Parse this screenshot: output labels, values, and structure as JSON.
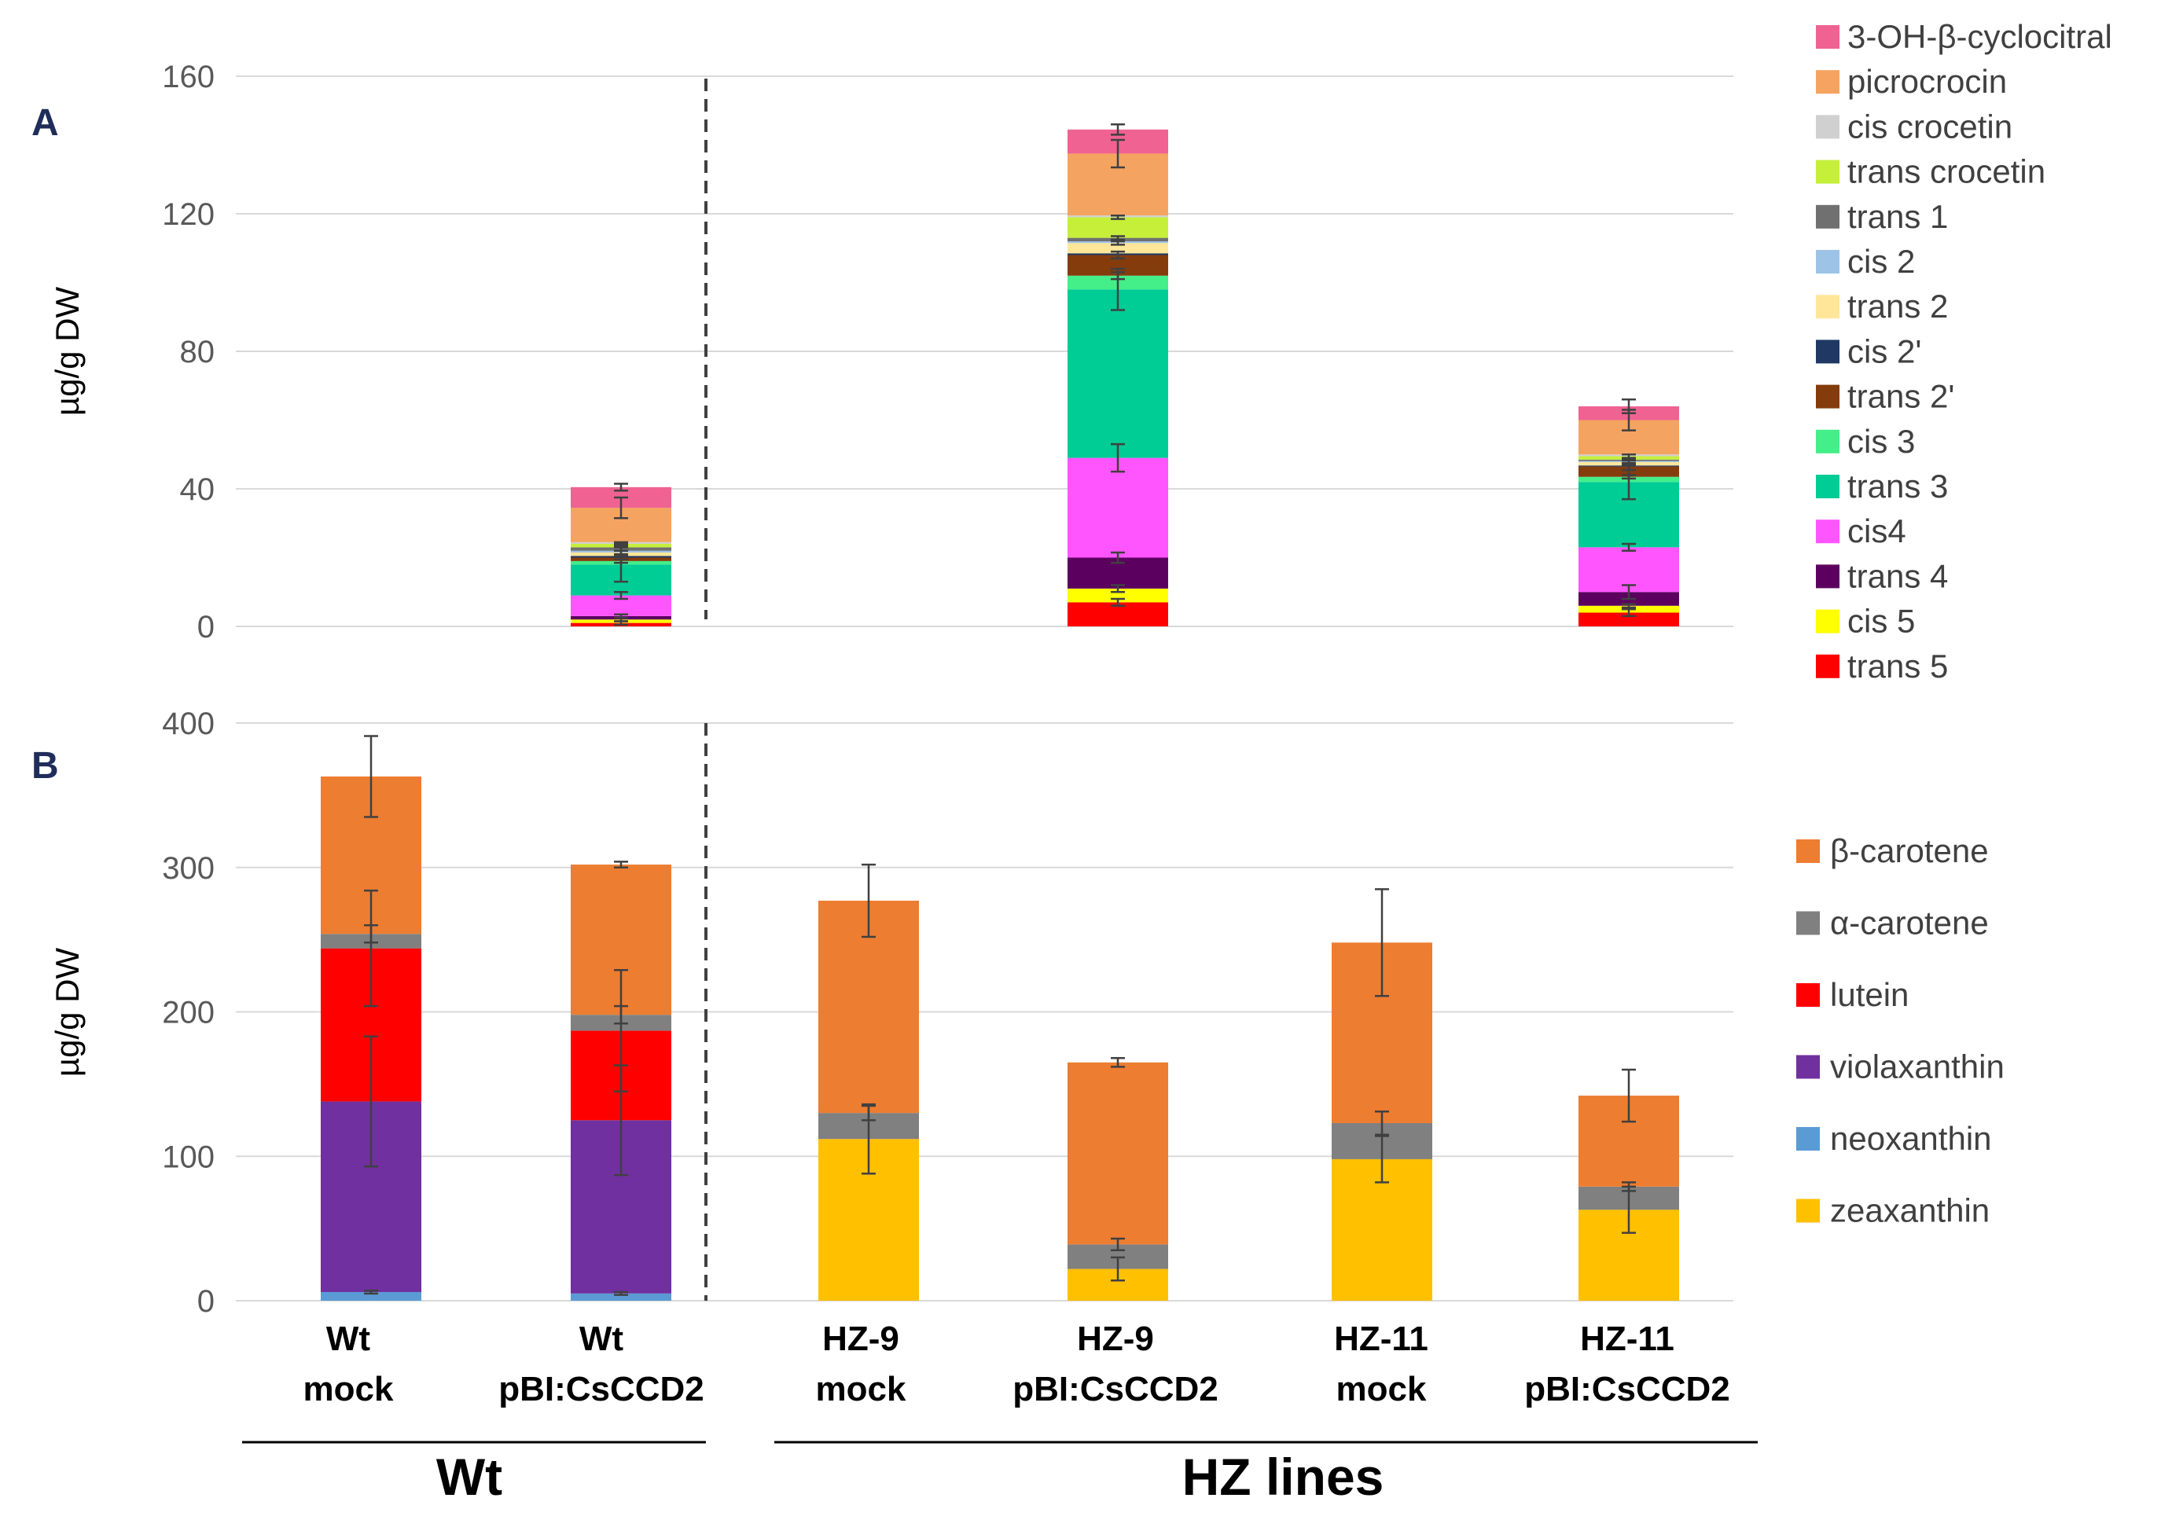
{
  "chart_data": [
    {
      "panel": "A",
      "type": "bar",
      "stacked": true,
      "ylabel": "µg/g DW",
      "ylim": [
        0,
        160
      ],
      "yticks": [
        0,
        40,
        80,
        120,
        160
      ],
      "grid": true,
      "legend_position": "right",
      "categories": [
        "Wt mock",
        "Wt pBI:CsCCD2",
        "HZ-9 mock",
        "HZ-9 pBI:CsCCD2",
        "HZ-11 mock",
        "HZ-11 pBI:CsCCD2"
      ],
      "series": [
        {
          "name": "trans 5",
          "color": "#ff0000",
          "values": [
            0,
            1,
            0,
            7,
            0,
            4
          ],
          "errors": [
            0,
            0.5,
            0,
            1,
            0,
            1
          ]
        },
        {
          "name": "cis 5",
          "color": "#ffff00",
          "values": [
            0,
            1,
            0,
            4,
            0,
            2
          ],
          "errors": [
            0,
            0.5,
            0,
            1,
            0,
            0.5
          ]
        },
        {
          "name": "trans 4",
          "color": "#5c0060",
          "values": [
            0,
            1,
            0,
            9,
            0,
            4
          ],
          "errors": [
            0,
            0.5,
            0,
            1.5,
            0,
            2
          ]
        },
        {
          "name": "cis4",
          "color": "#ff55ff",
          "values": [
            0,
            6,
            0,
            29,
            0,
            13
          ],
          "errors": [
            0,
            1,
            0,
            4,
            0,
            1
          ]
        },
        {
          "name": "trans 3",
          "color": "#00cc96",
          "values": [
            0,
            9,
            0,
            49,
            0,
            19
          ],
          "errors": [
            0,
            5,
            0,
            6,
            0,
            5
          ]
        },
        {
          "name": "cis 3",
          "color": "#44ee88",
          "values": [
            0,
            1,
            0,
            4,
            0,
            1.5
          ],
          "errors": [
            0,
            0.5,
            0,
            1,
            0,
            0.5
          ]
        },
        {
          "name": "trans 2'",
          "color": "#843c0c",
          "values": [
            0,
            1,
            0,
            6,
            0,
            3
          ],
          "errors": [
            0,
            0.5,
            0,
            1,
            0,
            1
          ]
        },
        {
          "name": "cis 2'",
          "color": "#1f3864",
          "values": [
            0,
            0.5,
            0,
            0.5,
            0,
            0.3
          ],
          "errors": [
            0,
            0,
            0,
            0,
            0,
            0
          ]
        },
        {
          "name": "trans 2",
          "color": "#ffe699",
          "values": [
            0,
            1,
            0,
            3,
            0,
            1
          ],
          "errors": [
            0,
            0.5,
            0,
            0.5,
            0,
            0.5
          ]
        },
        {
          "name": "cis 2",
          "color": "#9dc3e6",
          "values": [
            0,
            0.5,
            0,
            0.5,
            0,
            0.3
          ],
          "errors": [
            0,
            0,
            0,
            0,
            0,
            0
          ]
        },
        {
          "name": "trans 1",
          "color": "#707070",
          "values": [
            0,
            1,
            0,
            1,
            0,
            0.4
          ],
          "errors": [
            0,
            1,
            0,
            0.5,
            0,
            0.3
          ]
        },
        {
          "name": "trans crocetin",
          "color": "#c6ef3a",
          "values": [
            0,
            1,
            0,
            6,
            0,
            1
          ],
          "errors": [
            0,
            0.5,
            0,
            0.5,
            0,
            0.5
          ]
        },
        {
          "name": "cis crocetin",
          "color": "#d0d0d0",
          "values": [
            0,
            0.5,
            0,
            0.5,
            0,
            0.5
          ],
          "errors": [
            0,
            0,
            0,
            0,
            0,
            0
          ]
        },
        {
          "name": "picrocrocin",
          "color": "#f4a460",
          "values": [
            0,
            10,
            0,
            18,
            0,
            10
          ],
          "errors": [
            0,
            3,
            0,
            4,
            0,
            3
          ]
        },
        {
          "name": "3-OH-β-cyclocitral",
          "color": "#f06292",
          "values": [
            0,
            6,
            0,
            7,
            0,
            4
          ],
          "errors": [
            0,
            1,
            0,
            1.5,
            0,
            2
          ]
        }
      ]
    },
    {
      "panel": "B",
      "type": "bar",
      "stacked": true,
      "ylabel": "µg/g DW",
      "ylim": [
        0,
        400
      ],
      "yticks": [
        0,
        100,
        200,
        300,
        400
      ],
      "grid": true,
      "legend_position": "right",
      "categories": [
        "Wt mock",
        "Wt pBI:CsCCD2",
        "HZ-9 mock",
        "HZ-9 pBI:CsCCD2",
        "HZ-11 mock",
        "HZ-11 pBI:CsCCD2"
      ],
      "series": [
        {
          "name": "zeaxanthin",
          "color": "#ffc000",
          "values": [
            0,
            0,
            112,
            22,
            98,
            63
          ],
          "errors": [
            0,
            0,
            24,
            8,
            16,
            16
          ]
        },
        {
          "name": "neoxanthin",
          "color": "#5b9bd5",
          "values": [
            6,
            5,
            0,
            0,
            0,
            0
          ],
          "errors": [
            1,
            1,
            0,
            0,
            0,
            0
          ]
        },
        {
          "name": "violaxanthin",
          "color": "#7030a0",
          "values": [
            132,
            120,
            0,
            0,
            0,
            0
          ],
          "errors": [
            45,
            38,
            0,
            0,
            0,
            0
          ]
        },
        {
          "name": "lutein",
          "color": "#ff0000",
          "values": [
            106,
            62,
            0,
            0,
            0,
            0
          ],
          "errors": [
            40,
            42,
            0,
            0,
            0,
            0
          ]
        },
        {
          "name": "α-carotene",
          "color": "#808080",
          "values": [
            10,
            11,
            18,
            17,
            25,
            16
          ],
          "errors": [
            6,
            6,
            5,
            4,
            8,
            3
          ]
        },
        {
          "name": "β-carotene",
          "color": "#ed7d31",
          "values": [
            109,
            104,
            147,
            126,
            125,
            63
          ],
          "errors": [
            28,
            2,
            25,
            3,
            37,
            18
          ]
        }
      ]
    }
  ],
  "panel_a_label": "A",
  "panel_b_label": "B",
  "categories_display": [
    {
      "line1": "Wt",
      "line2": "mock"
    },
    {
      "line1": "Wt",
      "line2": "pBI:CsCCD2"
    },
    {
      "line1": "HZ-9",
      "line2": "mock"
    },
    {
      "line1": "HZ-9",
      "line2": "pBI:CsCCD2"
    },
    {
      "line1": "HZ-11",
      "line2": "mock"
    },
    {
      "line1": "HZ-11",
      "line2": "pBI:CsCCD2"
    }
  ],
  "groups": {
    "wt": "Wt",
    "hz": "HZ lines"
  }
}
